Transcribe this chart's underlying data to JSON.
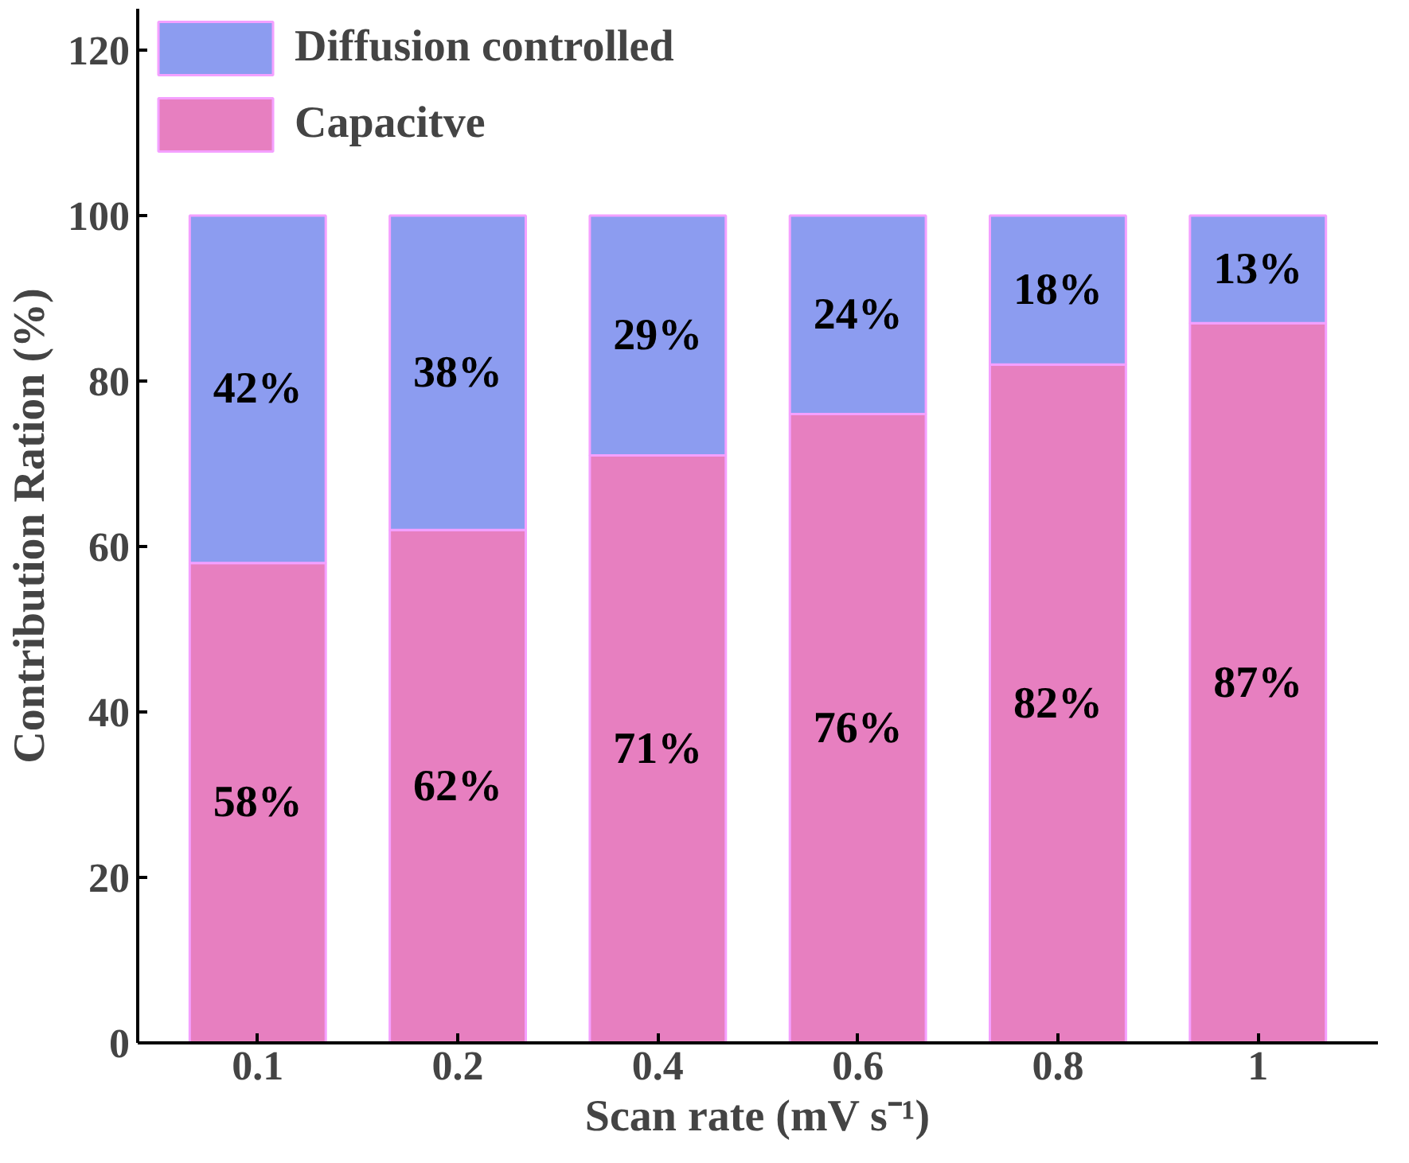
{
  "chart_data": {
    "type": "bar",
    "stacked": true,
    "xlabel": "Scan rate (mV s⁻¹)",
    "ylabel": "Contribution Ration (%)",
    "categories": [
      "0.1",
      "0.2",
      "0.4",
      "0.6",
      "0.8",
      "1"
    ],
    "series": [
      {
        "name": "Capacitve",
        "color": "#e77fc0",
        "values": [
          58,
          62,
          71,
          76,
          82,
          87
        ],
        "value_labels": [
          "58%",
          "62%",
          "71%",
          "76%",
          "82%",
          "87%"
        ]
      },
      {
        "name": "Diffusion controlled",
        "color": "#8c9cf0",
        "values": [
          42,
          38,
          29,
          24,
          18,
          13
        ],
        "value_labels": [
          "42%",
          "38%",
          "29%",
          "24%",
          "18%",
          "13%"
        ]
      }
    ],
    "ylim": [
      0,
      125
    ],
    "yticks": [
      0,
      20,
      40,
      60,
      80,
      100,
      120
    ],
    "grid": false,
    "legend": "top left"
  }
}
